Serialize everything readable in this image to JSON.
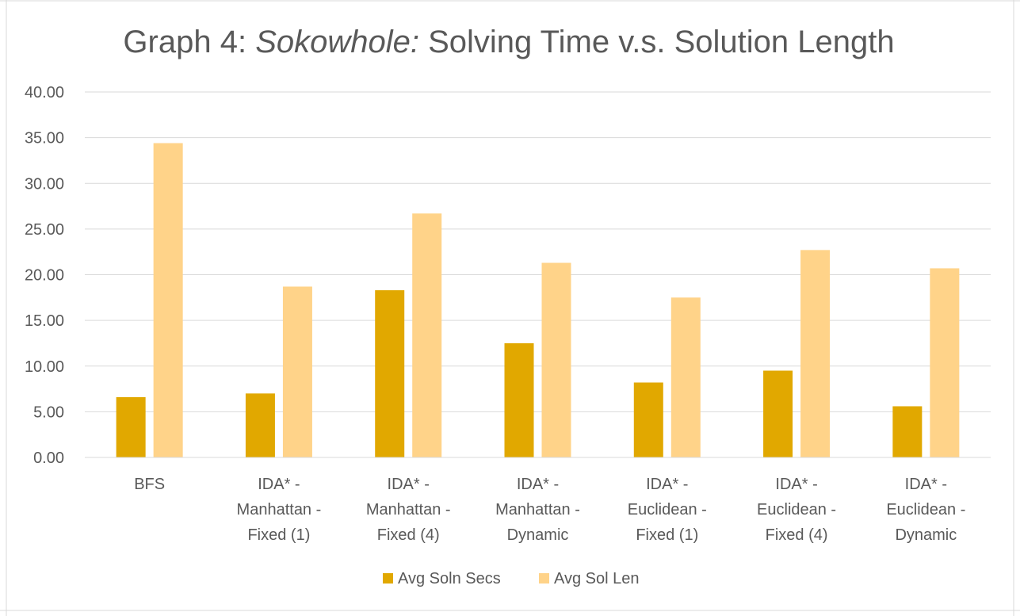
{
  "chart_data": {
    "type": "bar",
    "title": {
      "prefix": "Graph 4: ",
      "italic": "Sokowhole:",
      "suffix": " Solving Time v.s. Solution Length"
    },
    "xlabel": "",
    "ylabel": "",
    "ylim": [
      0,
      40
    ],
    "yticks": [
      "0.00",
      "5.00",
      "10.00",
      "15.00",
      "20.00",
      "25.00",
      "30.00",
      "35.00",
      "40.00"
    ],
    "grid": true,
    "legend_position": "bottom",
    "categories": [
      [
        "BFS"
      ],
      [
        "IDA* -",
        "Manhattan -",
        "Fixed (1)"
      ],
      [
        "IDA* -",
        "Manhattan -",
        "Fixed (4)"
      ],
      [
        "IDA* -",
        "Manhattan -",
        "Dynamic"
      ],
      [
        "IDA* -",
        "Euclidean -",
        "Fixed (1)"
      ],
      [
        "IDA* -",
        "Euclidean -",
        "Fixed (4)"
      ],
      [
        "IDA* -",
        "Euclidean -",
        "Dynamic"
      ]
    ],
    "series": [
      {
        "name": "Avg Soln Secs",
        "color": "#E1A800",
        "values": [
          6.6,
          7.0,
          18.3,
          12.5,
          8.2,
          9.5,
          5.6
        ]
      },
      {
        "name": "Avg Sol Len",
        "color": "#FFD389",
        "values": [
          34.4,
          18.7,
          26.7,
          21.3,
          17.5,
          22.7,
          20.7
        ]
      }
    ]
  }
}
